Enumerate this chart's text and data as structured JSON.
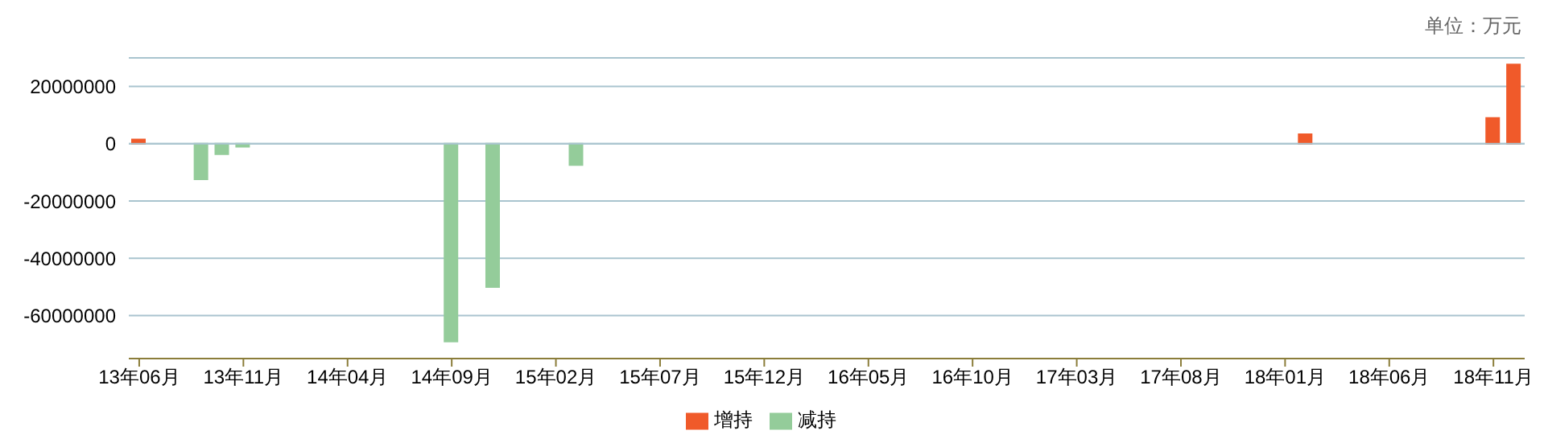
{
  "chart_data": {
    "type": "bar",
    "stacked": true,
    "categories": [
      "13年06月",
      null,
      null,
      null,
      null,
      "13年11月",
      null,
      null,
      null,
      null,
      "14年04月",
      null,
      null,
      null,
      null,
      "14年09月",
      null,
      null,
      null,
      null,
      "15年02月",
      null,
      null,
      null,
      null,
      "15年07月",
      null,
      null,
      null,
      null,
      "15年12月",
      null,
      null,
      null,
      null,
      "16年05月",
      null,
      null,
      null,
      null,
      "16年10月",
      null,
      null,
      null,
      null,
      "17年03月",
      null,
      null,
      null,
      null,
      "17年08月",
      null,
      null,
      null,
      null,
      "18年01月",
      null,
      null,
      null,
      null,
      "18年06月",
      null,
      null,
      null,
      null,
      "18年11月",
      null
    ],
    "series": [
      {
        "name": "增持",
        "color": "#f05a2a",
        "values": [
          1500000,
          null,
          null,
          null,
          null,
          null,
          null,
          null,
          null,
          null,
          null,
          null,
          null,
          null,
          null,
          null,
          null,
          null,
          null,
          null,
          null,
          null,
          null,
          null,
          null,
          null,
          null,
          null,
          null,
          null,
          null,
          null,
          null,
          null,
          null,
          null,
          null,
          null,
          null,
          null,
          null,
          null,
          null,
          null,
          null,
          null,
          null,
          null,
          null,
          null,
          null,
          null,
          null,
          null,
          null,
          null,
          3300000,
          null,
          null,
          null,
          null,
          null,
          null,
          null,
          null,
          9000000,
          27700000
        ]
      },
      {
        "name": "减持",
        "color": "#94cc9a",
        "values": [
          null,
          null,
          null,
          -12400000,
          -3600000,
          -1000000,
          null,
          null,
          null,
          null,
          null,
          null,
          null,
          null,
          null,
          -69000000,
          null,
          -50000000,
          null,
          null,
          null,
          -7400000,
          null,
          null,
          null,
          null,
          null,
          null,
          null,
          null,
          null,
          null,
          null,
          null,
          null,
          null,
          null,
          null,
          null,
          null,
          null,
          null,
          null,
          null,
          null,
          null,
          null,
          null,
          null,
          null,
          null,
          null,
          null,
          null,
          null,
          null,
          null,
          null,
          null,
          null,
          null,
          null,
          null,
          null,
          null,
          null,
          null
        ]
      }
    ],
    "ylim": [
      -75000000,
      30000000
    ],
    "yticks": [
      -60000000,
      -40000000,
      -20000000,
      0,
      20000000
    ],
    "grid": "y",
    "legend": "bottom",
    "annotations": [
      "单位：万元"
    ]
  }
}
